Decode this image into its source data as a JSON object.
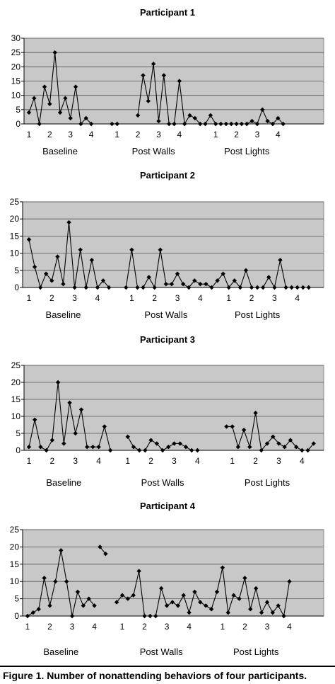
{
  "caption": "Figure 1. Number of nonattending behaviors of four participants.",
  "colors": {
    "plot_bg": "#c8c8c8",
    "line": "#000000",
    "grid": "#555555"
  },
  "chart_data": [
    {
      "type": "line",
      "title": "Participant 1",
      "ylim": [
        0,
        30
      ],
      "yticks": [
        "0",
        "5",
        "10",
        "15",
        "20",
        "25",
        "30"
      ],
      "n_slots": 57,
      "x_ticks": [
        {
          "slot": 0,
          "label": "1"
        },
        {
          "slot": 4,
          "label": "2"
        },
        {
          "slot": 8,
          "label": "3"
        },
        {
          "slot": 12,
          "label": "4"
        },
        {
          "slot": 17,
          "label": "1"
        },
        {
          "slot": 21,
          "label": "2"
        },
        {
          "slot": 25,
          "label": "3"
        },
        {
          "slot": 29,
          "label": "4"
        },
        {
          "slot": 36,
          "label": "1"
        },
        {
          "slot": 40,
          "label": "2"
        },
        {
          "slot": 44,
          "label": "3"
        },
        {
          "slot": 48,
          "label": "4"
        }
      ],
      "phases": [
        {
          "label": "Baseline",
          "slot": 6
        },
        {
          "label": "Post Walls",
          "slot": 24
        },
        {
          "label": "Post Lights",
          "slot": 42
        }
      ],
      "segments": [
        {
          "start": 0,
          "values": [
            4,
            9,
            0,
            13,
            7,
            25,
            4,
            9,
            2,
            13,
            0,
            2,
            0
          ]
        },
        {
          "start": 16,
          "values": [
            0,
            0
          ]
        },
        {
          "start": 21,
          "values": [
            3,
            17,
            8,
            21,
            1,
            17,
            0,
            0,
            15,
            0,
            3,
            2,
            0,
            0,
            3,
            0,
            0,
            0,
            0,
            0,
            0,
            0,
            1,
            0,
            5,
            1,
            0,
            2,
            0
          ]
        }
      ]
    },
    {
      "type": "line",
      "title": "Participant 2",
      "ylim": [
        0,
        25
      ],
      "yticks": [
        "0",
        "5",
        "10",
        "15",
        "20",
        "25"
      ],
      "n_slots": 52,
      "x_ticks": [
        {
          "slot": 0,
          "label": "1"
        },
        {
          "slot": 4,
          "label": "2"
        },
        {
          "slot": 8,
          "label": "3"
        },
        {
          "slot": 12,
          "label": "4"
        },
        {
          "slot": 18,
          "label": "1"
        },
        {
          "slot": 22,
          "label": "2"
        },
        {
          "slot": 26,
          "label": "3"
        },
        {
          "slot": 30,
          "label": "4"
        },
        {
          "slot": 35,
          "label": "1"
        },
        {
          "slot": 39,
          "label": "2"
        },
        {
          "slot": 43,
          "label": "3"
        },
        {
          "slot": 47,
          "label": "4"
        }
      ],
      "phases": [
        {
          "label": "Baseline",
          "slot": 6
        },
        {
          "label": "Post Walls",
          "slot": 24
        },
        {
          "label": "Post Lights",
          "slot": 40
        }
      ],
      "segments": [
        {
          "start": 0,
          "values": [
            14,
            6,
            0,
            4,
            2,
            9,
            1,
            19,
            0,
            11,
            0,
            8,
            0,
            2,
            0
          ]
        },
        {
          "start": 17,
          "values": [
            0,
            11,
            0,
            0,
            3,
            0,
            11,
            1,
            1,
            4,
            1,
            0,
            2,
            1,
            1,
            0,
            2,
            4,
            0,
            2,
            0,
            5,
            0,
            0,
            0,
            3,
            0,
            8,
            0,
            0,
            0,
            0,
            0
          ]
        }
      ]
    },
    {
      "type": "line",
      "title": "Participant 3",
      "ylim": [
        0,
        25
      ],
      "yticks": [
        "0",
        "5",
        "10",
        "15",
        "20",
        "25"
      ],
      "n_slots": 51,
      "x_ticks": [
        {
          "slot": 0,
          "label": "1"
        },
        {
          "slot": 4,
          "label": "2"
        },
        {
          "slot": 8,
          "label": "3"
        },
        {
          "slot": 12,
          "label": "4"
        },
        {
          "slot": 17,
          "label": "1"
        },
        {
          "slot": 21,
          "label": "2"
        },
        {
          "slot": 25,
          "label": "3"
        },
        {
          "slot": 29,
          "label": "4"
        },
        {
          "slot": 35,
          "label": "1"
        },
        {
          "slot": 39,
          "label": "2"
        },
        {
          "slot": 43,
          "label": "3"
        },
        {
          "slot": 47,
          "label": "4"
        }
      ],
      "phases": [
        {
          "label": "Baseline",
          "slot": 6
        },
        {
          "label": "Post Walls",
          "slot": 23
        },
        {
          "label": "Post Lights",
          "slot": 41
        }
      ],
      "segments": [
        {
          "start": 0,
          "values": [
            1,
            9,
            1,
            0,
            3,
            20,
            2,
            14,
            5,
            12,
            1,
            1,
            1,
            7,
            0
          ]
        },
        {
          "start": 17,
          "values": [
            4,
            1,
            0,
            0,
            3,
            2,
            0,
            1,
            2,
            2,
            1,
            0,
            0
          ]
        },
        {
          "start": 34,
          "values": [
            7,
            7,
            1,
            6,
            1,
            11,
            0,
            2,
            4,
            2,
            1,
            3,
            1,
            0,
            0,
            2
          ]
        }
      ]
    },
    {
      "type": "line",
      "title": "Participant 4",
      "ylim": [
        0,
        25
      ],
      "yticks": [
        "0",
        "5",
        "10",
        "15",
        "20",
        "25"
      ],
      "n_slots": 52,
      "x_ticks": [
        {
          "slot": 0,
          "label": "1"
        },
        {
          "slot": 4,
          "label": "2"
        },
        {
          "slot": 8,
          "label": "3"
        },
        {
          "slot": 12,
          "label": "4"
        },
        {
          "slot": 17,
          "label": "1"
        },
        {
          "slot": 21,
          "label": "2"
        },
        {
          "slot": 25,
          "label": "3"
        },
        {
          "slot": 29,
          "label": "4"
        },
        {
          "slot": 35,
          "label": "1"
        },
        {
          "slot": 39,
          "label": "2"
        },
        {
          "slot": 43,
          "label": "3"
        },
        {
          "slot": 47,
          "label": "4"
        }
      ],
      "phases": [
        {
          "label": "Baseline",
          "slot": 6
        },
        {
          "label": "Post Walls",
          "slot": 24
        },
        {
          "label": "Post Lights",
          "slot": 41
        }
      ],
      "segments": [
        {
          "start": 0,
          "values": [
            0,
            1,
            2,
            11,
            3,
            10,
            19,
            10,
            0,
            7,
            3,
            5,
            3
          ]
        },
        {
          "start": 13,
          "values": [
            20,
            18
          ]
        },
        {
          "start": 16,
          "values": [
            4,
            6,
            5,
            6,
            13,
            0,
            0,
            0,
            8,
            3,
            4,
            3,
            6,
            1,
            7,
            4,
            3,
            2,
            7,
            14,
            1,
            6,
            5,
            11,
            2,
            8,
            1,
            4,
            1,
            3,
            0,
            10
          ]
        }
      ]
    }
  ]
}
